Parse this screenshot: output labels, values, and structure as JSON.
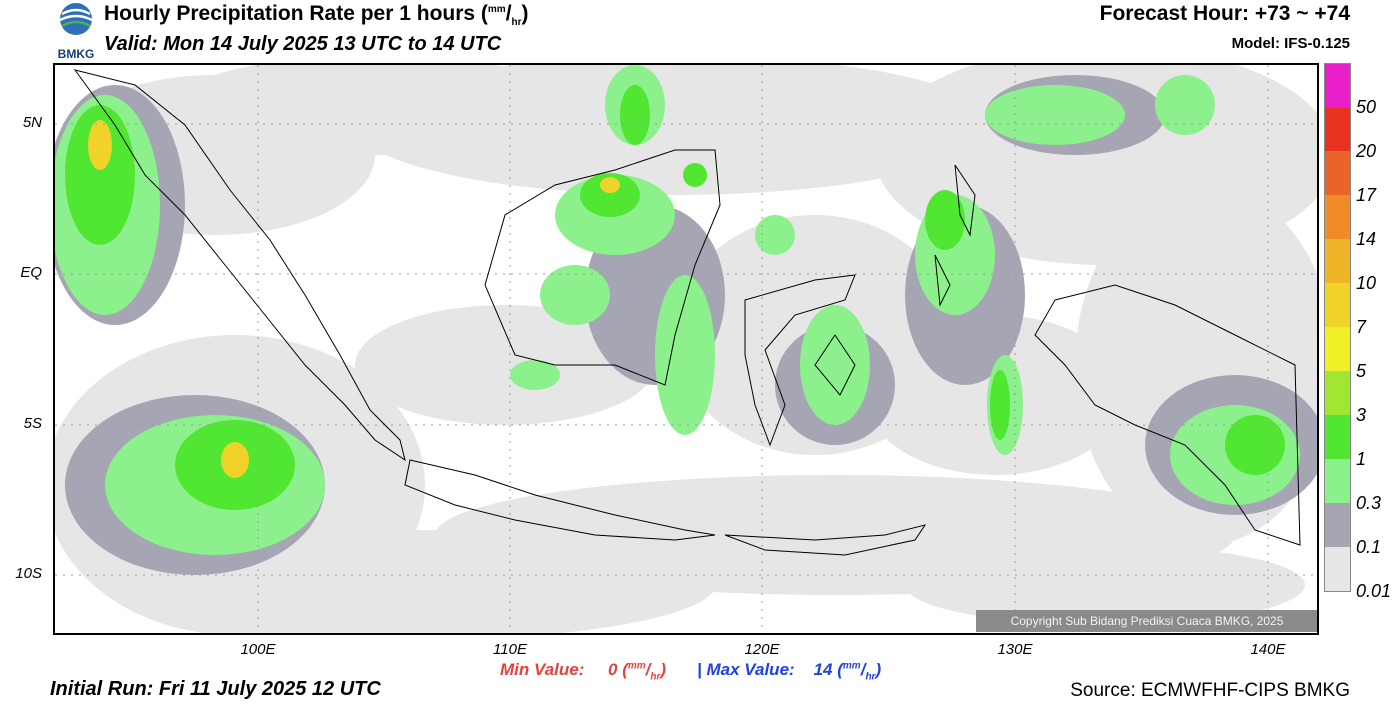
{
  "header": {
    "logo_text": "BMKG",
    "title_main": "Hourly Precipitation Rate per 1 hours (",
    "title_unit_num": "mm",
    "title_unit_sep": "/",
    "title_unit_den": "hr",
    "title_close": ")",
    "valid": "Valid: Mon 14 July 2025 13 UTC to 14 UTC",
    "forecast_hour": "Forecast Hour: +73 ~ +74",
    "model": "Model: IFS-0.125"
  },
  "map": {
    "lat_labels": [
      "5N",
      "EQ",
      "5S",
      "10S"
    ],
    "lon_labels": [
      "100E",
      "110E",
      "120E",
      "130E",
      "140E"
    ],
    "copyright": "Copyright Sub Bidang Prediksi Cuaca BMKG, 2025"
  },
  "legend": {
    "labels": [
      "50",
      "20",
      "17",
      "14",
      "10",
      "7",
      "5",
      "3",
      "1",
      "0.3",
      "0.1",
      "0.01"
    ],
    "colors": [
      "#e81ec8",
      "#e8321e",
      "#e86428",
      "#f08c28",
      "#f0b428",
      "#f0d228",
      "#f0f028",
      "#a0e632",
      "#50e632",
      "#8cf08c",
      "#a5a5b4",
      "#e6e6e6"
    ]
  },
  "footer": {
    "min_label": "Min Value:",
    "min_value": "0",
    "max_label": "Max Value:",
    "max_value": "14",
    "separator": "|",
    "unit_num": "mm",
    "unit_den": "hr",
    "min_color": "#e84040",
    "max_color": "#2040e8",
    "initial_run": "Initial Run: Fri 11 July 2025 12 UTC",
    "source": "Source: ECMWFHF-CIPS BMKG"
  }
}
